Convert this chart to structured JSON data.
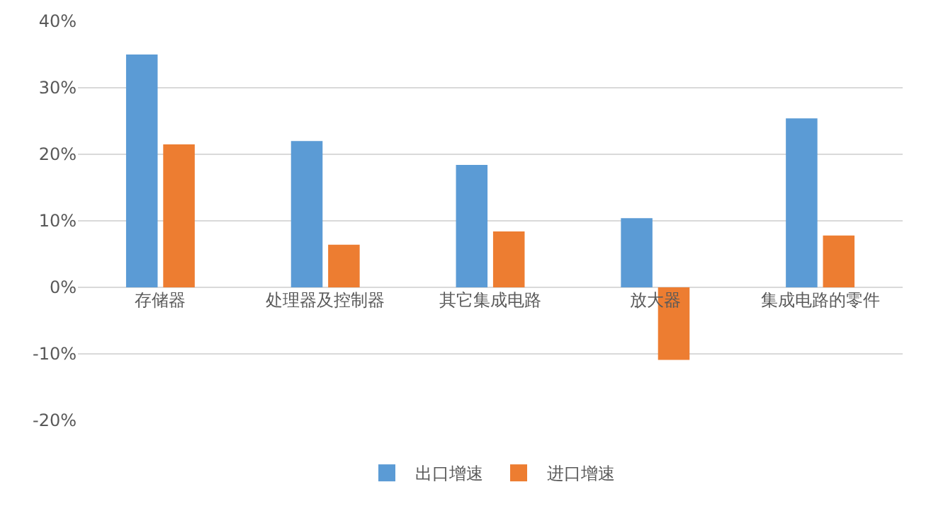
{
  "chart_data": {
    "type": "bar",
    "categories": [
      "存储器",
      "处理器及控制器",
      "其它集成电路",
      "放大器",
      "集成电路的零件"
    ],
    "series": [
      {
        "name": "出口增速",
        "color": "#5b9bd5",
        "values": [
          35,
          22,
          18.4,
          10.4,
          25.4
        ]
      },
      {
        "name": "进口增速",
        "color": "#ed7d31",
        "values": [
          21.5,
          6.4,
          8.4,
          -10.9,
          7.8
        ]
      }
    ],
    "ylim": [
      -20,
      40
    ],
    "yticks": [
      {
        "value": -20,
        "label": "-20%"
      },
      {
        "value": -10,
        "label": "-10%"
      },
      {
        "value": 0,
        "label": "0%"
      },
      {
        "value": 10,
        "label": "10%"
      },
      {
        "value": 20,
        "label": "20%"
      },
      {
        "value": 30,
        "label": "30%"
      },
      {
        "value": 40,
        "label": "40%"
      }
    ],
    "grid": "y",
    "legend": "bottom"
  }
}
